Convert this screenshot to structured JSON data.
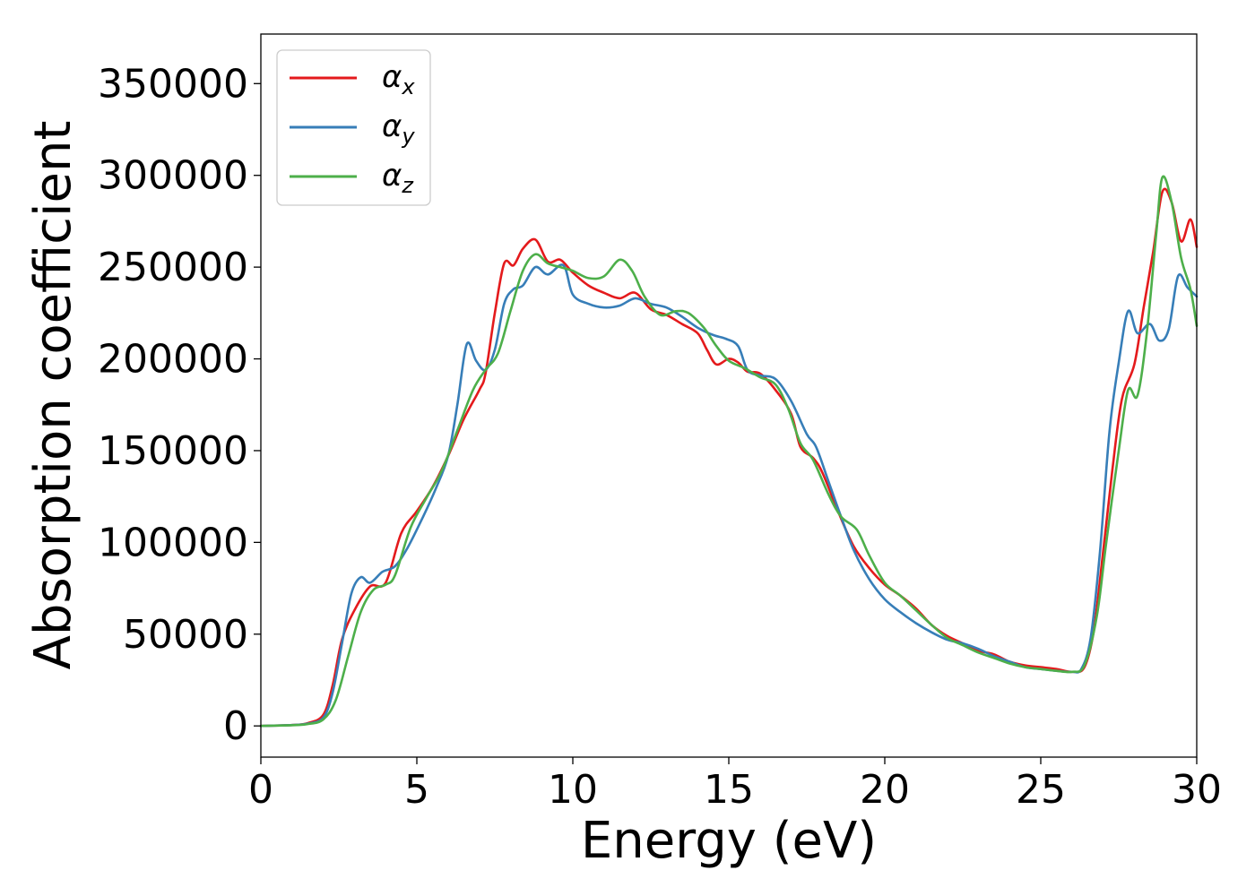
{
  "chart_data": {
    "type": "line",
    "title": "",
    "xlabel": "Energy (eV)",
    "ylabel": "Absorption coefficient",
    "xlim": [
      0,
      30
    ],
    "ylim": [
      -17000,
      377000
    ],
    "xticks": [
      0,
      5,
      10,
      15,
      20,
      25,
      30
    ],
    "yticks": [
      0,
      50000,
      100000,
      150000,
      200000,
      250000,
      300000,
      350000
    ],
    "grid": false,
    "legend_position": "top-left",
    "series": [
      {
        "name": "α",
        "subscript": "x",
        "color": "#e41a1c",
        "points": [
          [
            0,
            0
          ],
          [
            1,
            500
          ],
          [
            1.5,
            1500
          ],
          [
            2,
            6000
          ],
          [
            2.3,
            22000
          ],
          [
            2.6,
            47000
          ],
          [
            3,
            63000
          ],
          [
            3.5,
            76000
          ],
          [
            4,
            78000
          ],
          [
            4.5,
            105000
          ],
          [
            5,
            117000
          ],
          [
            5.5,
            130000
          ],
          [
            6,
            147000
          ],
          [
            6.5,
            167000
          ],
          [
            7,
            183000
          ],
          [
            7.2,
            192000
          ],
          [
            7.5,
            225000
          ],
          [
            7.8,
            252000
          ],
          [
            8.1,
            251000
          ],
          [
            8.4,
            260000
          ],
          [
            8.8,
            265000
          ],
          [
            9.2,
            253000
          ],
          [
            9.6,
            254000
          ],
          [
            10,
            247000
          ],
          [
            10.5,
            240000
          ],
          [
            11,
            236000
          ],
          [
            11.5,
            233000
          ],
          [
            12,
            236000
          ],
          [
            12.5,
            227000
          ],
          [
            13,
            224000
          ],
          [
            13.5,
            219000
          ],
          [
            14,
            214000
          ],
          [
            14.3,
            205000
          ],
          [
            14.6,
            197000
          ],
          [
            15,
            200000
          ],
          [
            15.3,
            198000
          ],
          [
            15.6,
            193000
          ],
          [
            16,
            192000
          ],
          [
            16.5,
            183000
          ],
          [
            17,
            170000
          ],
          [
            17.3,
            152000
          ],
          [
            17.7,
            146000
          ],
          [
            18,
            138000
          ],
          [
            18.5,
            117000
          ],
          [
            19,
            98000
          ],
          [
            19.5,
            86000
          ],
          [
            20,
            77000
          ],
          [
            20.5,
            71000
          ],
          [
            21,
            64000
          ],
          [
            21.5,
            55000
          ],
          [
            22,
            49000
          ],
          [
            22.5,
            45000
          ],
          [
            23,
            41000
          ],
          [
            23.5,
            39000
          ],
          [
            24,
            35000
          ],
          [
            24.5,
            33000
          ],
          [
            25,
            32000
          ],
          [
            25.5,
            31000
          ],
          [
            26,
            29500
          ],
          [
            26.4,
            32000
          ],
          [
            26.7,
            52000
          ],
          [
            27,
            95000
          ],
          [
            27.3,
            140000
          ],
          [
            27.6,
            178000
          ],
          [
            28,
            197000
          ],
          [
            28.3,
            228000
          ],
          [
            28.6,
            258000
          ],
          [
            28.9,
            291000
          ],
          [
            29.2,
            285000
          ],
          [
            29.5,
            264000
          ],
          [
            29.8,
            276000
          ],
          [
            30,
            261000
          ]
        ]
      },
      {
        "name": "α",
        "subscript": "y",
        "color": "#377eb8",
        "points": [
          [
            0,
            0
          ],
          [
            1,
            500
          ],
          [
            1.5,
            1200
          ],
          [
            2,
            4500
          ],
          [
            2.3,
            18000
          ],
          [
            2.6,
            45000
          ],
          [
            2.9,
            72000
          ],
          [
            3.2,
            81000
          ],
          [
            3.5,
            78000
          ],
          [
            3.9,
            84000
          ],
          [
            4.3,
            87000
          ],
          [
            4.7,
            97000
          ],
          [
            5.2,
            114000
          ],
          [
            5.6,
            129000
          ],
          [
            6,
            147000
          ],
          [
            6.3,
            175000
          ],
          [
            6.6,
            208000
          ],
          [
            6.9,
            199000
          ],
          [
            7.2,
            194000
          ],
          [
            7.5,
            205000
          ],
          [
            7.8,
            230000
          ],
          [
            8.1,
            238000
          ],
          [
            8.4,
            240000
          ],
          [
            8.8,
            250000
          ],
          [
            9.2,
            246000
          ],
          [
            9.7,
            251000
          ],
          [
            10,
            235000
          ],
          [
            10.5,
            230000
          ],
          [
            11,
            228000
          ],
          [
            11.5,
            229000
          ],
          [
            12,
            233000
          ],
          [
            12.5,
            230000
          ],
          [
            13,
            228000
          ],
          [
            13.5,
            223000
          ],
          [
            14,
            217000
          ],
          [
            14.5,
            213000
          ],
          [
            14.9,
            211000
          ],
          [
            15.3,
            207000
          ],
          [
            15.6,
            194000
          ],
          [
            16,
            191000
          ],
          [
            16.5,
            189000
          ],
          [
            17,
            177000
          ],
          [
            17.5,
            159000
          ],
          [
            17.8,
            152000
          ],
          [
            18.2,
            133000
          ],
          [
            18.6,
            114000
          ],
          [
            19,
            96000
          ],
          [
            19.5,
            80000
          ],
          [
            20,
            69000
          ],
          [
            20.5,
            62000
          ],
          [
            21,
            56000
          ],
          [
            21.5,
            51000
          ],
          [
            22,
            47000
          ],
          [
            22.5,
            45000
          ],
          [
            23,
            42000
          ],
          [
            23.5,
            38000
          ],
          [
            24,
            35000
          ],
          [
            24.5,
            32000
          ],
          [
            25,
            31000
          ],
          [
            25.5,
            30000
          ],
          [
            26,
            29500
          ],
          [
            26.3,
            31000
          ],
          [
            26.6,
            48000
          ],
          [
            26.9,
            95000
          ],
          [
            27.2,
            160000
          ],
          [
            27.5,
            198000
          ],
          [
            27.8,
            226000
          ],
          [
            28.1,
            214000
          ],
          [
            28.5,
            219000
          ],
          [
            28.8,
            210000
          ],
          [
            29.1,
            216000
          ],
          [
            29.4,
            245000
          ],
          [
            29.7,
            239000
          ],
          [
            30,
            234000
          ]
        ]
      },
      {
        "name": "α",
        "subscript": "z",
        "color": "#4daf4a",
        "points": [
          [
            0,
            0
          ],
          [
            1,
            400
          ],
          [
            1.5,
            1000
          ],
          [
            2,
            3500
          ],
          [
            2.4,
            14000
          ],
          [
            2.8,
            38000
          ],
          [
            3.2,
            62000
          ],
          [
            3.6,
            74000
          ],
          [
            4,
            77000
          ],
          [
            4.3,
            82000
          ],
          [
            4.8,
            108000
          ],
          [
            5.3,
            124000
          ],
          [
            5.8,
            139000
          ],
          [
            6.3,
            161000
          ],
          [
            6.8,
            183000
          ],
          [
            7.2,
            194000
          ],
          [
            7.6,
            203000
          ],
          [
            8,
            226000
          ],
          [
            8.4,
            248000
          ],
          [
            8.8,
            257000
          ],
          [
            9.2,
            252000
          ],
          [
            9.6,
            250000
          ],
          [
            10,
            248000
          ],
          [
            10.5,
            244000
          ],
          [
            11,
            245000
          ],
          [
            11.5,
            254000
          ],
          [
            11.9,
            248000
          ],
          [
            12.3,
            234000
          ],
          [
            12.8,
            224000
          ],
          [
            13.3,
            226000
          ],
          [
            13.7,
            225000
          ],
          [
            14.2,
            217000
          ],
          [
            14.6,
            207000
          ],
          [
            15,
            199000
          ],
          [
            15.5,
            195000
          ],
          [
            16,
            190000
          ],
          [
            16.5,
            186000
          ],
          [
            16.9,
            173000
          ],
          [
            17.3,
            154000
          ],
          [
            17.7,
            145000
          ],
          [
            18.2,
            126000
          ],
          [
            18.6,
            114000
          ],
          [
            19.1,
            107000
          ],
          [
            19.5,
            93000
          ],
          [
            20,
            78000
          ],
          [
            20.5,
            71000
          ],
          [
            21,
            63000
          ],
          [
            21.5,
            55000
          ],
          [
            22,
            48000
          ],
          [
            22.5,
            44000
          ],
          [
            23,
            40000
          ],
          [
            23.5,
            37000
          ],
          [
            24,
            34000
          ],
          [
            24.5,
            32000
          ],
          [
            25,
            31000
          ],
          [
            25.5,
            30000
          ],
          [
            26,
            29500
          ],
          [
            26.4,
            33000
          ],
          [
            26.8,
            60000
          ],
          [
            27.1,
            100000
          ],
          [
            27.5,
            150000
          ],
          [
            27.8,
            183000
          ],
          [
            28.1,
            180000
          ],
          [
            28.4,
            214000
          ],
          [
            28.7,
            268000
          ],
          [
            28.9,
            299000
          ],
          [
            29.2,
            285000
          ],
          [
            29.5,
            255000
          ],
          [
            29.8,
            238000
          ],
          [
            30,
            218000
          ]
        ]
      }
    ]
  }
}
